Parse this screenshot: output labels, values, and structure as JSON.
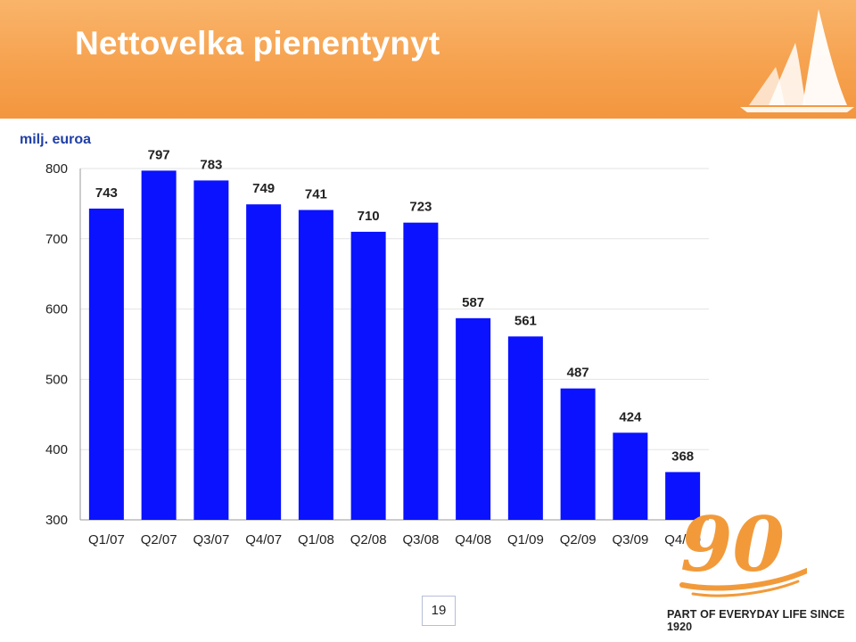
{
  "header": {
    "title": "Nettovelka pienentynyt"
  },
  "footer": {
    "page_number": "19",
    "tagline": "PART OF EVERYDAY LIFE SINCE 1920"
  },
  "logo": {
    "mark_text": "90"
  },
  "colors": {
    "bar": "#0a12ff",
    "header": "#f6a24f",
    "logo": "#f29a3a",
    "unit": "#1f3fa8"
  },
  "chart_data": {
    "type": "bar",
    "ylabel": "milj. euroa",
    "categories": [
      "Q1/07",
      "Q2/07",
      "Q3/07",
      "Q4/07",
      "Q1/08",
      "Q2/08",
      "Q3/08",
      "Q4/08",
      "Q1/09",
      "Q2/09",
      "Q3/09",
      "Q4/09"
    ],
    "values": [
      743,
      797,
      783,
      749,
      741,
      710,
      723,
      587,
      561,
      487,
      424,
      368
    ],
    "ylim": [
      300,
      800
    ],
    "yticks": [
      300,
      400,
      500,
      600,
      700,
      800
    ],
    "grid": true,
    "legend": "none"
  }
}
